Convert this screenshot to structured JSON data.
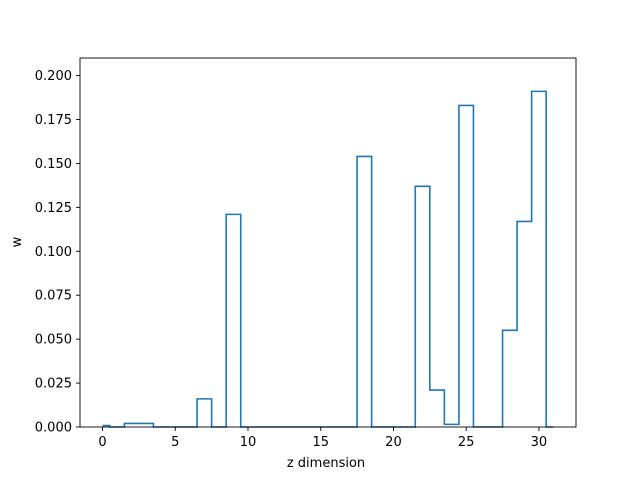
{
  "chart_data": {
    "type": "step",
    "title": "",
    "xlabel": "z dimension",
    "ylabel": "w",
    "xlim": [
      -1.55,
      32.55
    ],
    "ylim": [
      0,
      0.21
    ],
    "xticks": [
      0,
      5,
      10,
      15,
      20,
      25,
      30
    ],
    "yticks": [
      "0.000",
      "0.025",
      "0.050",
      "0.075",
      "0.100",
      "0.125",
      "0.150",
      "0.175",
      "0.200"
    ],
    "grid": false,
    "color": "#1f77b4",
    "x": [
      0,
      1,
      2,
      3,
      4,
      5,
      6,
      7,
      8,
      9,
      10,
      11,
      12,
      13,
      14,
      15,
      16,
      17,
      18,
      19,
      20,
      21,
      22,
      23,
      24,
      25,
      26,
      27,
      28,
      29,
      30,
      31
    ],
    "values": [
      0.0008,
      0.0,
      0.002,
      0.002,
      0.0,
      0.0,
      0.0,
      0.016,
      0.0,
      0.121,
      0.0,
      0.0,
      0.0,
      0.0,
      0.0,
      0.0,
      0.0,
      0.0,
      0.154,
      0.0,
      0.0,
      0.0,
      0.137,
      0.021,
      0.0015,
      0.183,
      0.0,
      0.0,
      0.055,
      0.117,
      0.191,
      0.0
    ]
  }
}
